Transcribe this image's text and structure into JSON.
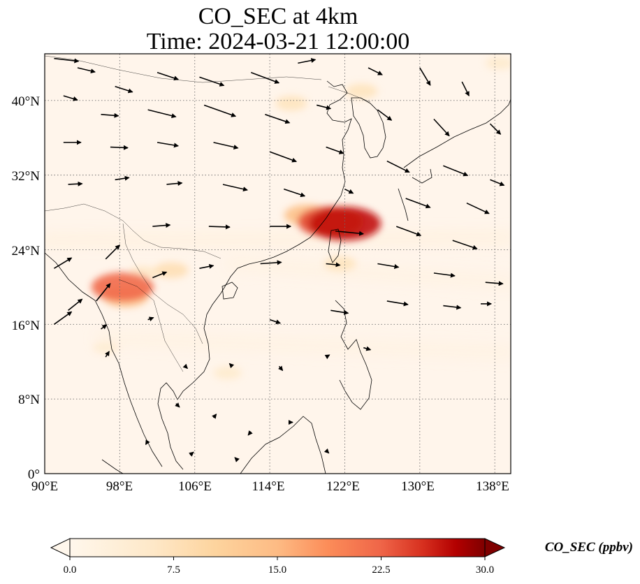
{
  "chart_data": {
    "type": "heatmap",
    "title": "CO_SEC at 4km",
    "subtitle": "Time: 2024-03-21 12:00:00",
    "xlabel": "",
    "ylabel": "",
    "x_ticks": [
      "90°E",
      "98°E",
      "106°E",
      "114°E",
      "122°E",
      "130°E",
      "138°E"
    ],
    "y_ticks": [
      "0°",
      "8°N",
      "16°N",
      "24°N",
      "32°N",
      "40°N"
    ],
    "x_tick_values": [
      90,
      98,
      106,
      114,
      122,
      130,
      138
    ],
    "y_tick_values": [
      0,
      8,
      16,
      24,
      32,
      40
    ],
    "xlim": [
      90,
      139.7
    ],
    "ylim": [
      0,
      45
    ],
    "grid": true,
    "colormap": "OrRd",
    "colorbar": {
      "label": "CO_SEC (ppbv)",
      "min": 0.0,
      "max": 30.0,
      "ticks": [
        "0.0",
        "7.5",
        "15.0",
        "22.5",
        "30.0"
      ],
      "tick_values": [
        0,
        7.5,
        15,
        22.5,
        30
      ],
      "extend": "both"
    },
    "hotspots": [
      {
        "lon": 120.5,
        "lat": 27.0,
        "value": 24
      },
      {
        "lon": 122.0,
        "lat": 26.8,
        "value": 27
      },
      {
        "lon": 118.0,
        "lat": 27.7,
        "value": 14
      },
      {
        "lon": 98.3,
        "lat": 20.0,
        "value": 22
      },
      {
        "lon": 98.6,
        "lat": 19.0,
        "value": 14
      },
      {
        "lon": 100.5,
        "lat": 21.5,
        "value": 6
      },
      {
        "lon": 103.5,
        "lat": 21.8,
        "value": 8
      },
      {
        "lon": 116.3,
        "lat": 39.7,
        "value": 7
      },
      {
        "lon": 123.8,
        "lat": 41.0,
        "value": 7
      },
      {
        "lon": 121.5,
        "lat": 22.5,
        "value": 7
      },
      {
        "lon": 109.5,
        "lat": 10.8,
        "value": 5
      },
      {
        "lon": 96.5,
        "lat": 13.5,
        "value": 4
      },
      {
        "lon": 138.5,
        "lat": 44.0,
        "value": 5
      }
    ],
    "bands": [
      {
        "from": [
          90,
          25.0
        ],
        "to": [
          139.5,
          25.3
        ],
        "value": 2.5
      },
      {
        "from": [
          110,
          22.5
        ],
        "to": [
          139.5,
          20.5
        ],
        "value": 2.0
      },
      {
        "from": [
          96,
          14.5
        ],
        "to": [
          139.5,
          13.0
        ],
        "value": 2.0
      }
    ],
    "wind_vectors": [
      {
        "lon": 91,
        "lat": 44.5,
        "u": 3.5,
        "v": -0.4
      },
      {
        "lon": 93.5,
        "lat": 43.5,
        "u": 2.5,
        "v": -0.6
      },
      {
        "lon": 97.5,
        "lat": 41.5,
        "u": 2.5,
        "v": -0.8
      },
      {
        "lon": 102,
        "lat": 43.0,
        "u": 3.0,
        "v": -1.0
      },
      {
        "lon": 106.5,
        "lat": 42.5,
        "u": 3.5,
        "v": -1.2
      },
      {
        "lon": 112,
        "lat": 43.0,
        "u": 4.0,
        "v": -1.5
      },
      {
        "lon": 117,
        "lat": 44.0,
        "u": 2.5,
        "v": 0.5
      },
      {
        "lon": 124.5,
        "lat": 43.5,
        "u": 2.0,
        "v": -1.0
      },
      {
        "lon": 130,
        "lat": 43.5,
        "u": 1.5,
        "v": -2.5
      },
      {
        "lon": 134.5,
        "lat": 42.0,
        "u": 1.0,
        "v": -2.0
      },
      {
        "lon": 92,
        "lat": 40.5,
        "u": 2.0,
        "v": -0.6
      },
      {
        "lon": 96,
        "lat": 38.5,
        "u": 2.5,
        "v": -0.2
      },
      {
        "lon": 101,
        "lat": 39.0,
        "u": 4.0,
        "v": -1.0
      },
      {
        "lon": 107,
        "lat": 39.5,
        "u": 4.5,
        "v": -1.6
      },
      {
        "lon": 113.5,
        "lat": 38.5,
        "u": 3.5,
        "v": -1.2
      },
      {
        "lon": 119,
        "lat": 39.5,
        "u": 2.0,
        "v": -0.5
      },
      {
        "lon": 125.5,
        "lat": 39.0,
        "u": 2.0,
        "v": -1.5
      },
      {
        "lon": 131.5,
        "lat": 38.0,
        "u": 2.2,
        "v": -2.4
      },
      {
        "lon": 137.5,
        "lat": 37.5,
        "u": 1.5,
        "v": -1.5
      },
      {
        "lon": 92,
        "lat": 35.5,
        "u": 2.5,
        "v": 0.0
      },
      {
        "lon": 97,
        "lat": 35.0,
        "u": 2.5,
        "v": -0.1
      },
      {
        "lon": 102,
        "lat": 35.5,
        "u": 3.0,
        "v": -0.5
      },
      {
        "lon": 108,
        "lat": 35.5,
        "u": 3.5,
        "v": -0.8
      },
      {
        "lon": 114,
        "lat": 34.5,
        "u": 3.8,
        "v": -1.4
      },
      {
        "lon": 120,
        "lat": 35.0,
        "u": 2.5,
        "v": -0.9
      },
      {
        "lon": 126.5,
        "lat": 33.5,
        "u": 3.2,
        "v": -1.6
      },
      {
        "lon": 132.5,
        "lat": 33.0,
        "u": 3.5,
        "v": -1.4
      },
      {
        "lon": 137.5,
        "lat": 31.5,
        "u": 2.0,
        "v": -0.8
      },
      {
        "lon": 92.5,
        "lat": 31.0,
        "u": 2.0,
        "v": 0.1
      },
      {
        "lon": 97.5,
        "lat": 31.5,
        "u": 2.0,
        "v": 0.3
      },
      {
        "lon": 103,
        "lat": 31.0,
        "u": 2.2,
        "v": 0.2
      },
      {
        "lon": 109,
        "lat": 31.0,
        "u": 3.5,
        "v": -0.8
      },
      {
        "lon": 115.5,
        "lat": 30.5,
        "u": 3.0,
        "v": -1.0
      },
      {
        "lon": 122,
        "lat": 30.5,
        "u": 1.2,
        "v": -0.6
      },
      {
        "lon": 128.5,
        "lat": 29.5,
        "u": 3.5,
        "v": -1.3
      },
      {
        "lon": 135,
        "lat": 29.0,
        "u": 3.2,
        "v": -1.5
      },
      {
        "lon": 91,
        "lat": 22.0,
        "u": 2.5,
        "v": 1.5
      },
      {
        "lon": 96.5,
        "lat": 23.0,
        "u": 2.0,
        "v": 2.0
      },
      {
        "lon": 101.5,
        "lat": 26.5,
        "u": 2.5,
        "v": 0.2
      },
      {
        "lon": 107.5,
        "lat": 26.5,
        "u": 3.0,
        "v": -0.1
      },
      {
        "lon": 114,
        "lat": 26.5,
        "u": 3.0,
        "v": 0.0
      },
      {
        "lon": 121,
        "lat": 26.0,
        "u": 4.0,
        "v": -0.4
      },
      {
        "lon": 127.5,
        "lat": 26.5,
        "u": 3.5,
        "v": -1.3
      },
      {
        "lon": 133.5,
        "lat": 25.0,
        "u": 3.5,
        "v": -1.2
      },
      {
        "lon": 92.5,
        "lat": 17.5,
        "u": 2.0,
        "v": 1.6
      },
      {
        "lon": 95.5,
        "lat": 18.5,
        "u": 2.0,
        "v": 2.5
      },
      {
        "lon": 101.5,
        "lat": 21.0,
        "u": 2.0,
        "v": 0.8
      },
      {
        "lon": 106.5,
        "lat": 22.0,
        "u": 2.0,
        "v": 0.4
      },
      {
        "lon": 113,
        "lat": 22.5,
        "u": 3.0,
        "v": 0.2
      },
      {
        "lon": 120,
        "lat": 22.5,
        "u": 2.0,
        "v": -0.2
      },
      {
        "lon": 125.5,
        "lat": 22.5,
        "u": 3.0,
        "v": -0.5
      },
      {
        "lon": 131.5,
        "lat": 21.5,
        "u": 3.0,
        "v": -0.4
      },
      {
        "lon": 137,
        "lat": 20.5,
        "u": 2.5,
        "v": -0.2
      },
      {
        "lon": 91,
        "lat": 16.0,
        "u": 2.5,
        "v": 1.8
      },
      {
        "lon": 96,
        "lat": 15.5,
        "u": 0.8,
        "v": 0.6
      },
      {
        "lon": 101,
        "lat": 16.5,
        "u": 0.8,
        "v": 0.3
      },
      {
        "lon": 114,
        "lat": 16.5,
        "u": 1.5,
        "v": -0.5
      },
      {
        "lon": 120.5,
        "lat": 17.5,
        "u": 2.5,
        "v": -0.4
      },
      {
        "lon": 126.5,
        "lat": 18.5,
        "u": 3.0,
        "v": -0.5
      },
      {
        "lon": 132.5,
        "lat": 18.0,
        "u": 2.5,
        "v": -0.3
      },
      {
        "lon": 136.5,
        "lat": 18.2,
        "u": 1.5,
        "v": 0.0
      },
      {
        "lon": 96.5,
        "lat": 12.5,
        "u": 0.5,
        "v": 0.8
      },
      {
        "lon": 105,
        "lat": 11.5,
        "u": 0.3,
        "v": -0.3
      },
      {
        "lon": 110,
        "lat": 11.5,
        "u": -0.4,
        "v": 0.4
      },
      {
        "lon": 115,
        "lat": 11.5,
        "u": 0.5,
        "v": -0.6
      },
      {
        "lon": 120,
        "lat": 12.5,
        "u": 0.5,
        "v": 0.3
      },
      {
        "lon": 124,
        "lat": 13.5,
        "u": 1.0,
        "v": -0.3
      },
      {
        "lon": 104,
        "lat": 7.5,
        "u": 0.5,
        "v": -0.5
      },
      {
        "lon": 108,
        "lat": 6.0,
        "u": 0.4,
        "v": 0.5
      },
      {
        "lon": 112,
        "lat": 4.5,
        "u": -0.4,
        "v": -0.5
      },
      {
        "lon": 116,
        "lat": 5.5,
        "u": 0.6,
        "v": 0.0
      },
      {
        "lon": 101,
        "lat": 3.5,
        "u": -0.3,
        "v": -0.5
      },
      {
        "lon": 105.5,
        "lat": 2.0,
        "u": 0.5,
        "v": 0.4
      },
      {
        "lon": 110.5,
        "lat": 1.5,
        "u": -0.3,
        "v": 0.3
      },
      {
        "lon": 120,
        "lat": 2.5,
        "u": 0.4,
        "v": -0.4
      }
    ]
  }
}
